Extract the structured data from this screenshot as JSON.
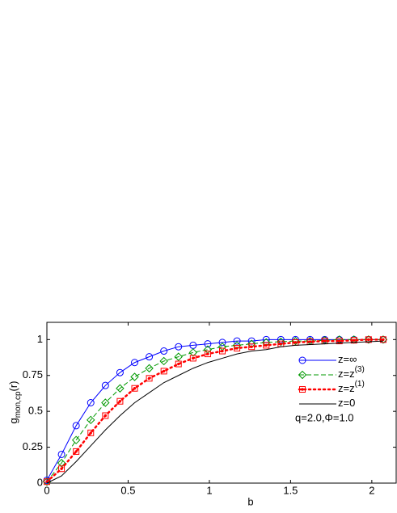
{
  "chart_data": {
    "type": "line",
    "xlabel": "b",
    "ylabel": "g",
    "ylabel_subscript": "mon,cp",
    "ylabel_suffix": "(r)",
    "annotation": "q=2.0,Φ=1.0",
    "x": [
      0,
      0.09,
      0.18,
      0.27,
      0.36,
      0.45,
      0.54,
      0.63,
      0.72,
      0.81,
      0.9,
      0.99,
      1.08,
      1.17,
      1.26,
      1.35,
      1.44,
      1.53,
      1.62,
      1.71,
      1.8,
      1.89,
      1.98,
      2.07
    ],
    "series": [
      {
        "name": "z=∞",
        "color": "#0000ff",
        "dash": "solid",
        "marker": "circle",
        "values": [
          0.02,
          0.2,
          0.4,
          0.56,
          0.68,
          0.77,
          0.84,
          0.88,
          0.92,
          0.95,
          0.96,
          0.97,
          0.98,
          0.99,
          0.99,
          1,
          1,
          1,
          1,
          1,
          1,
          1,
          1,
          1
        ]
      },
      {
        "name": "z=z",
        "name_superscript": "(3)",
        "color": "#009900",
        "dash": "dashed",
        "marker": "diamond",
        "values": [
          0.01,
          0.14,
          0.3,
          0.44,
          0.56,
          0.66,
          0.74,
          0.8,
          0.85,
          0.88,
          0.91,
          0.93,
          0.95,
          0.96,
          0.97,
          0.98,
          0.985,
          0.99,
          0.99,
          0.995,
          1,
          1,
          1,
          1
        ]
      },
      {
        "name": "z=z",
        "name_superscript": "(1)",
        "color": "#ff0000",
        "dash": "dotted",
        "marker": "square",
        "values": [
          0.01,
          0.1,
          0.22,
          0.35,
          0.47,
          0.57,
          0.66,
          0.73,
          0.78,
          0.83,
          0.87,
          0.9,
          0.92,
          0.94,
          0.95,
          0.96,
          0.97,
          0.98,
          0.985,
          0.99,
          0.99,
          0.995,
          1,
          1
        ]
      },
      {
        "name": "z=0",
        "color": "#000000",
        "dash": "solid",
        "marker": "none",
        "values": [
          0,
          0.05,
          0.15,
          0.26,
          0.37,
          0.47,
          0.56,
          0.63,
          0.7,
          0.75,
          0.8,
          0.84,
          0.87,
          0.9,
          0.92,
          0.93,
          0.95,
          0.96,
          0.965,
          0.97,
          0.975,
          0.98,
          0.985,
          0.99
        ]
      }
    ],
    "xlim": [
      0,
      2.15
    ],
    "xticks": [
      0,
      0.5,
      1,
      1.5,
      2
    ],
    "ylim": [
      0,
      1.12
    ],
    "yticks": [
      0,
      0.25,
      0.5,
      0.75,
      1
    ]
  }
}
